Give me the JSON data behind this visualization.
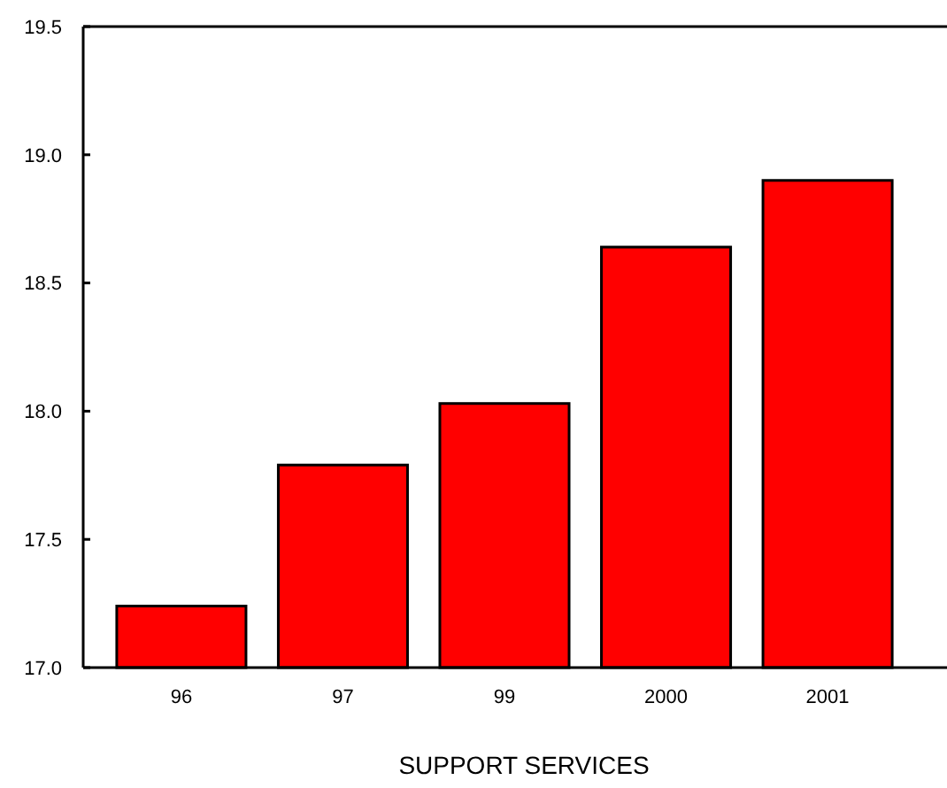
{
  "chart_data": {
    "type": "bar",
    "xlabel": "SUPPORT SERVICES",
    "categories": [
      "96",
      "97",
      "99",
      "2000",
      "2001"
    ],
    "values": [
      17.24,
      17.79,
      18.03,
      18.64,
      18.9
    ],
    "color": "#ff0000",
    "ylim": [
      17.0,
      19.5
    ],
    "yticks": [
      {
        "value": 17.0,
        "label": "17.0"
      },
      {
        "value": 17.5,
        "label": "17.5"
      },
      {
        "value": 18.0,
        "label": "18.0"
      },
      {
        "value": 18.5,
        "label": "18.5"
      },
      {
        "value": 19.0,
        "label": "19.0"
      },
      {
        "value": 19.5,
        "label": "19.5"
      }
    ],
    "grid": false
  }
}
